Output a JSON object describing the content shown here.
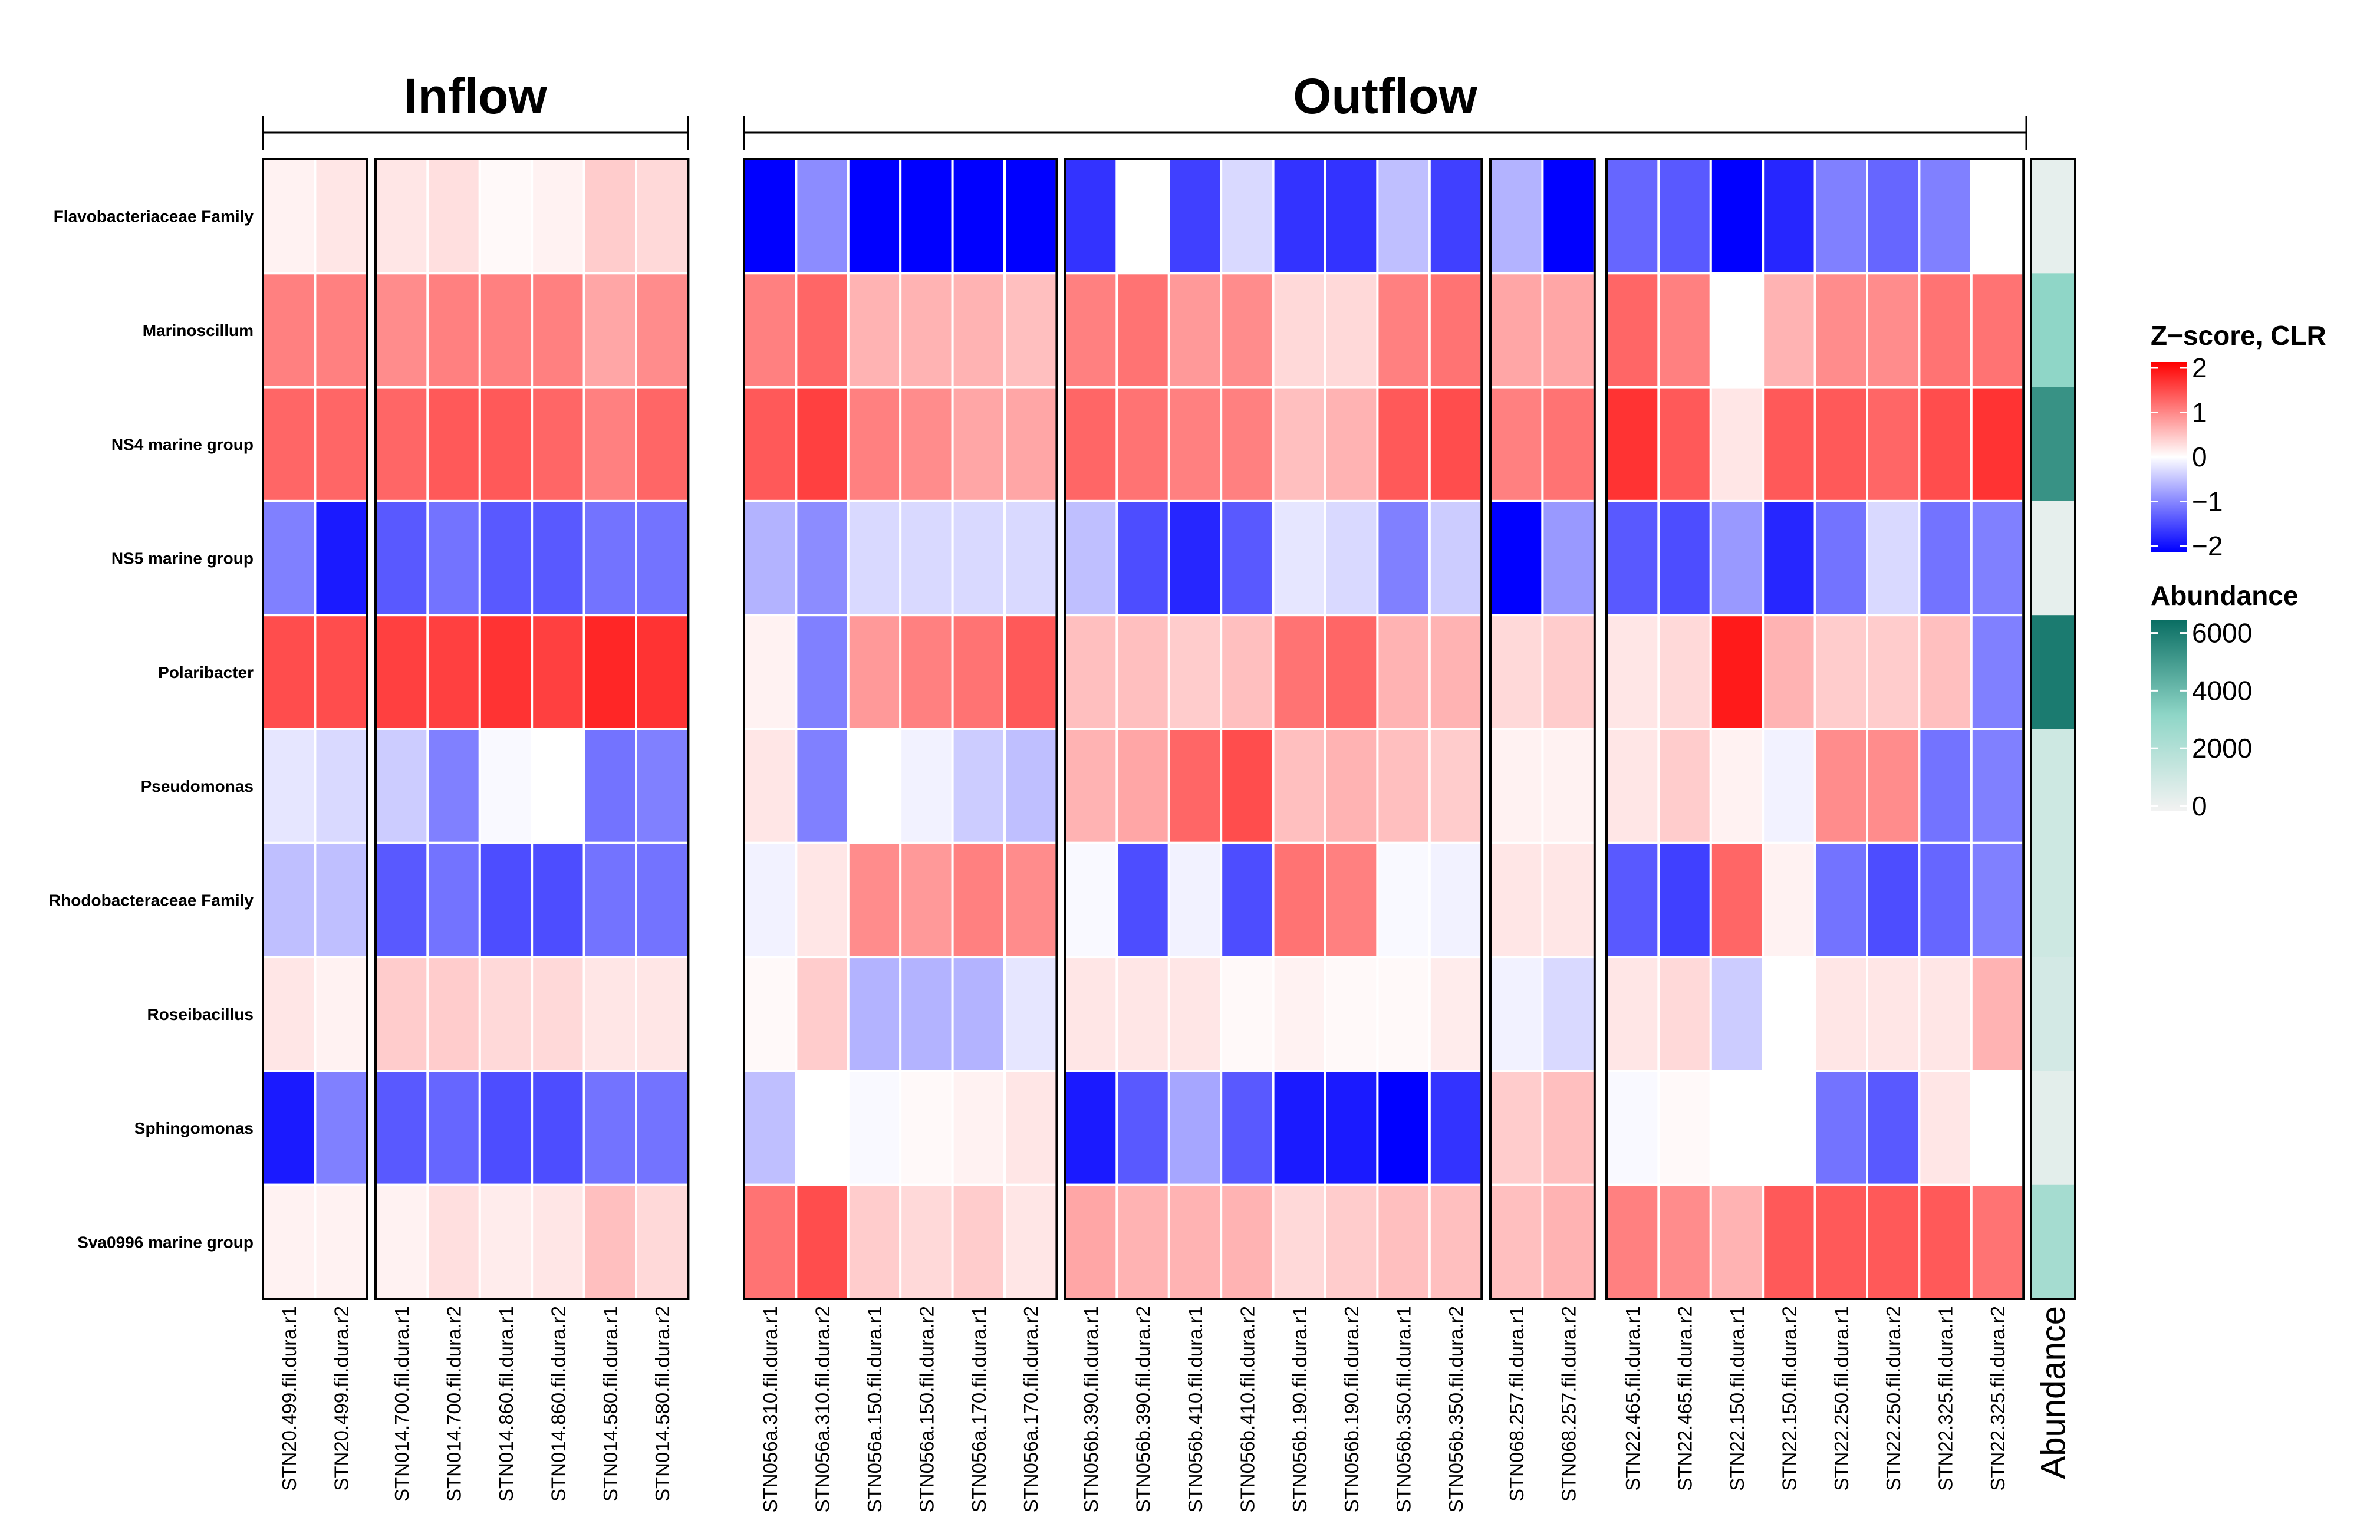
{
  "chart_data": {
    "type": "heatmap",
    "title": "",
    "rows": [
      "Flavobacteriaceae Family",
      "Marinoscillum",
      "NS4 marine group",
      "NS5 marine group",
      "Polaribacter",
      "Pseudomonas",
      "Rhodobacteraceae Family",
      "Roseibacillus",
      "Sphingomonas",
      "Sva0996 marine group"
    ],
    "column_groups": [
      {
        "name": "Inflow",
        "blocks": [
          [
            "STN20.499.fil.dura.r1",
            "STN20.499.fil.dura.r2"
          ],
          [
            "STN014.700.fil.dura.r1",
            "STN014.700.fil.dura.r2",
            "STN014.860.fil.dura.r1",
            "STN014.860.fil.dura.r2",
            "STN014.580.fil.dura.r1",
            "STN014.580.fil.dura.r2"
          ]
        ]
      },
      {
        "name": "Outflow",
        "blocks": [
          [
            "STN056a.310.fil.dura.r1",
            "STN056a.310.fil.dura.r2",
            "STN056a.150.fil.dura.r1",
            "STN056a.150.fil.dura.r2",
            "STN056a.170.fil.dura.r1",
            "STN056a.170.fil.dura.r2"
          ],
          [
            "STN056b.390.fil.dura.r1",
            "STN056b.390.fil.dura.r2",
            "STN056b.410.fil.dura.r1",
            "STN056b.410.fil.dura.r2",
            "STN056b.190.fil.dura.r1",
            "STN056b.190.fil.dura.r2",
            "STN056b.350.fil.dura.r1",
            "STN056b.350.fil.dura.r2"
          ],
          [
            "STN068.257.fil.dura.r1",
            "STN068.257.fil.dura.r2"
          ],
          [
            "STN22.465.fil.dura.r1",
            "STN22.465.fil.dura.r2",
            "STN22.150.fil.dura.r1",
            "STN22.150.fil.dura.r2",
            "STN22.250.fil.dura.r1",
            "STN22.250.fil.dura.r2",
            "STN22.325.fil.dura.r1",
            "STN22.325.fil.dura.r2"
          ]
        ]
      }
    ],
    "values": [
      [
        0.1,
        0.2,
        0.2,
        0.25,
        0.05,
        0.1,
        0.4,
        0.3,
        -2,
        -0.9,
        -2,
        -2,
        -2,
        -2,
        -1.6,
        0,
        -1.5,
        -0.3,
        -1.6,
        -1.6,
        -0.5,
        -1.5,
        -0.6,
        -2,
        -1.2,
        -1.3,
        -2,
        -1.7,
        -1,
        -1.2,
        -1,
        0
      ],
      [
        1,
        1,
        0.9,
        1,
        1,
        1,
        0.7,
        0.9,
        1,
        1.2,
        0.6,
        0.6,
        0.6,
        0.5,
        1,
        1.1,
        0.8,
        0.9,
        0.3,
        0.3,
        1,
        1.1,
        0.7,
        0.7,
        1.2,
        1,
        0,
        0.6,
        0.9,
        0.9,
        1.1,
        1.1
      ],
      [
        1.2,
        1.2,
        1.2,
        1.3,
        1.3,
        1.2,
        1,
        1.2,
        1.3,
        1.5,
        1,
        0.9,
        0.7,
        0.7,
        1.2,
        1.1,
        1,
        1,
        0.5,
        0.6,
        1.3,
        1.4,
        1,
        1.1,
        1.6,
        1.3,
        0.2,
        1.3,
        1.3,
        1.2,
        1.4,
        1.6
      ],
      [
        -1,
        -1.8,
        -1.3,
        -1.1,
        -1.3,
        -1.3,
        -1.1,
        -1.1,
        -0.6,
        -0.9,
        -0.3,
        -0.3,
        -0.3,
        -0.3,
        -0.5,
        -1.4,
        -1.7,
        -1.3,
        -0.2,
        -0.3,
        -1,
        -0.4,
        -2,
        -0.8,
        -1.3,
        -1.4,
        -0.8,
        -1.7,
        -1.1,
        -0.3,
        -1.1,
        -1
      ],
      [
        1.4,
        1.4,
        1.5,
        1.5,
        1.6,
        1.5,
        1.7,
        1.6,
        0.1,
        -1,
        0.8,
        1,
        1.1,
        1.3,
        0.5,
        0.5,
        0.4,
        0.5,
        1.1,
        1.2,
        0.6,
        0.6,
        0.3,
        0.4,
        0.2,
        0.3,
        1.8,
        0.6,
        0.4,
        0.4,
        0.5,
        -1
      ],
      [
        -0.2,
        -0.3,
        -0.4,
        -1,
        -0.05,
        0,
        -1.1,
        -1,
        0.2,
        -1,
        0,
        -0.1,
        -0.4,
        -0.5,
        0.6,
        0.7,
        1.2,
        1.4,
        0.5,
        0.6,
        0.5,
        0.4,
        0.1,
        0.1,
        0.2,
        0.4,
        0.1,
        -0.1,
        0.9,
        0.9,
        -1.1,
        -1
      ],
      [
        -0.5,
        -0.5,
        -1.3,
        -1.1,
        -1.4,
        -1.4,
        -1.1,
        -1.1,
        -0.1,
        0.2,
        0.9,
        0.8,
        1,
        0.9,
        -0.05,
        -1.4,
        -0.1,
        -1.4,
        1.1,
        1,
        -0.05,
        -0.1,
        0.2,
        0.2,
        -1.3,
        -1.5,
        1.2,
        0.1,
        -1.1,
        -1.4,
        -1.2,
        -1
      ],
      [
        0.2,
        0.1,
        0.4,
        0.4,
        0.3,
        0.3,
        0.2,
        0.2,
        0.05,
        0.4,
        -0.6,
        -0.6,
        -0.6,
        -0.2,
        0.2,
        0.2,
        0.2,
        0.05,
        0.1,
        0.05,
        0.05,
        0.15,
        -0.1,
        -0.3,
        0.2,
        0.3,
        -0.4,
        0,
        0.2,
        0.2,
        0.2,
        0.6
      ],
      [
        -1.8,
        -1,
        -1.3,
        -1.2,
        -1.4,
        -1.4,
        -1.1,
        -1.1,
        -0.5,
        0,
        -0.05,
        0.05,
        0.1,
        0.2,
        -1.8,
        -1.3,
        -0.7,
        -1.3,
        -1.8,
        -1.8,
        -2,
        -1.6,
        0.4,
        0.5,
        -0.05,
        0.05,
        0,
        0,
        -1.1,
        -1.3,
        0.2,
        0
      ],
      [
        0.1,
        0.1,
        0.1,
        0.25,
        0.15,
        0.2,
        0.5,
        0.3,
        1.1,
        1.4,
        0.4,
        0.3,
        0.4,
        0.2,
        0.7,
        0.6,
        0.6,
        0.6,
        0.3,
        0.4,
        0.5,
        0.5,
        0.5,
        0.6,
        1,
        0.9,
        0.6,
        1.3,
        1.3,
        1.3,
        1.3,
        1.1
      ]
    ],
    "abundance": [
      400,
      3200,
      5300,
      400,
      6000,
      1200,
      1200,
      1000,
      500,
      2500
    ],
    "legend": [
      {
        "title": "Z−score, CLR",
        "ticks": [
          "2",
          "1",
          "0",
          "−1",
          "−2"
        ],
        "range": [
          -2,
          2
        ],
        "colors": {
          "low": "#0000ff",
          "mid": "#ffffff",
          "high": "#ff0000"
        }
      },
      {
        "title": "Abundance",
        "ticks": [
          "6000",
          "4000",
          "2000",
          "0"
        ],
        "range": [
          0,
          6400
        ],
        "colors": {
          "low": "#f2f2f2",
          "mid": "#8fd6c7",
          "high": "#0a6e63"
        }
      }
    ],
    "abundance_column_label": "Abundance",
    "legend_position": "right"
  }
}
